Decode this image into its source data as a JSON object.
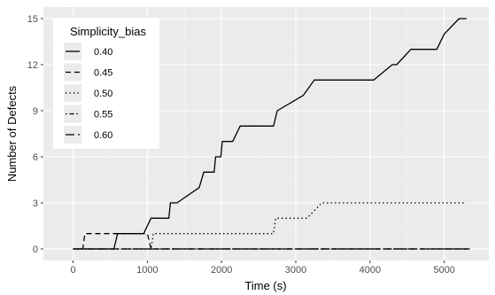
{
  "chart_data": {
    "type": "line",
    "xlabel": "Time (s)",
    "ylabel": "Number of Defects",
    "xlim": [
      -400,
      5600
    ],
    "ylim": [
      -0.75,
      15.75
    ],
    "x_ticks": [
      0,
      1000,
      2000,
      3000,
      4000,
      5000
    ],
    "x_tick_labels": [
      "0",
      "1000",
      "2000",
      "3000",
      "4000",
      "5000"
    ],
    "y_ticks": [
      0,
      3,
      6,
      9,
      12,
      15
    ],
    "y_tick_labels": [
      "0",
      "3",
      "6",
      "9",
      "12",
      "15"
    ],
    "grid": true,
    "legend": {
      "title": "Simplicity_bias",
      "position": "top-left"
    },
    "series": [
      {
        "name": "0.40",
        "dash": "solid",
        "points": [
          [
            0,
            0
          ],
          [
            550,
            0
          ],
          [
            600,
            1
          ],
          [
            950,
            1
          ],
          [
            1050,
            2
          ],
          [
            1290,
            2
          ],
          [
            1310,
            3
          ],
          [
            1400,
            3
          ],
          [
            1700,
            4
          ],
          [
            1760,
            5
          ],
          [
            1900,
            5
          ],
          [
            1920,
            6
          ],
          [
            1990,
            6
          ],
          [
            2010,
            7
          ],
          [
            2150,
            7
          ],
          [
            2250,
            8
          ],
          [
            2700,
            8
          ],
          [
            2750,
            9
          ],
          [
            3100,
            10
          ],
          [
            3250,
            11
          ],
          [
            4050,
            11
          ],
          [
            4300,
            12
          ],
          [
            4360,
            12
          ],
          [
            4550,
            13
          ],
          [
            4900,
            13
          ],
          [
            5000,
            14
          ],
          [
            5200,
            15
          ],
          [
            5300,
            15
          ]
        ]
      },
      {
        "name": "0.45",
        "dash": "dashed",
        "points": [
          [
            0,
            0
          ],
          [
            130,
            0
          ],
          [
            160,
            1
          ],
          [
            1000,
            1
          ],
          [
            1050,
            0
          ],
          [
            5350,
            0
          ]
        ]
      },
      {
        "name": "0.50",
        "dash": "dotted",
        "points": [
          [
            0,
            0
          ],
          [
            1050,
            0
          ],
          [
            1080,
            1
          ],
          [
            2700,
            1
          ],
          [
            2730,
            2
          ],
          [
            3150,
            2
          ],
          [
            3350,
            3
          ],
          [
            5300,
            3
          ]
        ]
      },
      {
        "name": "0.55",
        "dash": "dotdash",
        "points": [
          [
            0,
            0
          ],
          [
            5350,
            0
          ]
        ]
      },
      {
        "name": "0.60",
        "dash": "longdash",
        "points": [
          [
            0,
            0
          ],
          [
            5350,
            0
          ]
        ]
      }
    ]
  }
}
